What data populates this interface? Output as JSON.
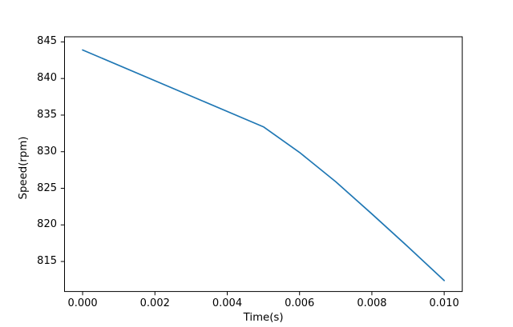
{
  "chart_data": {
    "type": "line",
    "title": "",
    "xlabel": "Time(s)",
    "ylabel": "Speed(rpm)",
    "x": [
      0.0,
      0.005,
      0.006,
      0.007,
      0.008,
      0.009,
      0.01
    ],
    "y": [
      843.9,
      833.4,
      829.9,
      825.9,
      821.5,
      817.0,
      812.4
    ],
    "series_name": "speed",
    "xlim": [
      -0.0005,
      0.0105
    ],
    "ylim": [
      810.9,
      845.7
    ],
    "x_tick_values": [
      0.0,
      0.002,
      0.004,
      0.006,
      0.008,
      0.01
    ],
    "x_tick_labels": [
      "0.000",
      "0.002",
      "0.004",
      "0.006",
      "0.008",
      "0.010"
    ],
    "y_tick_values": [
      815,
      820,
      825,
      830,
      835,
      840,
      845
    ],
    "y_tick_labels": [
      "815",
      "820",
      "825",
      "830",
      "835",
      "840",
      "845"
    ],
    "line_color": "#1f77b4",
    "spine_color": "#000000",
    "background_color": "#ffffff",
    "grid": false,
    "legend": null
  }
}
